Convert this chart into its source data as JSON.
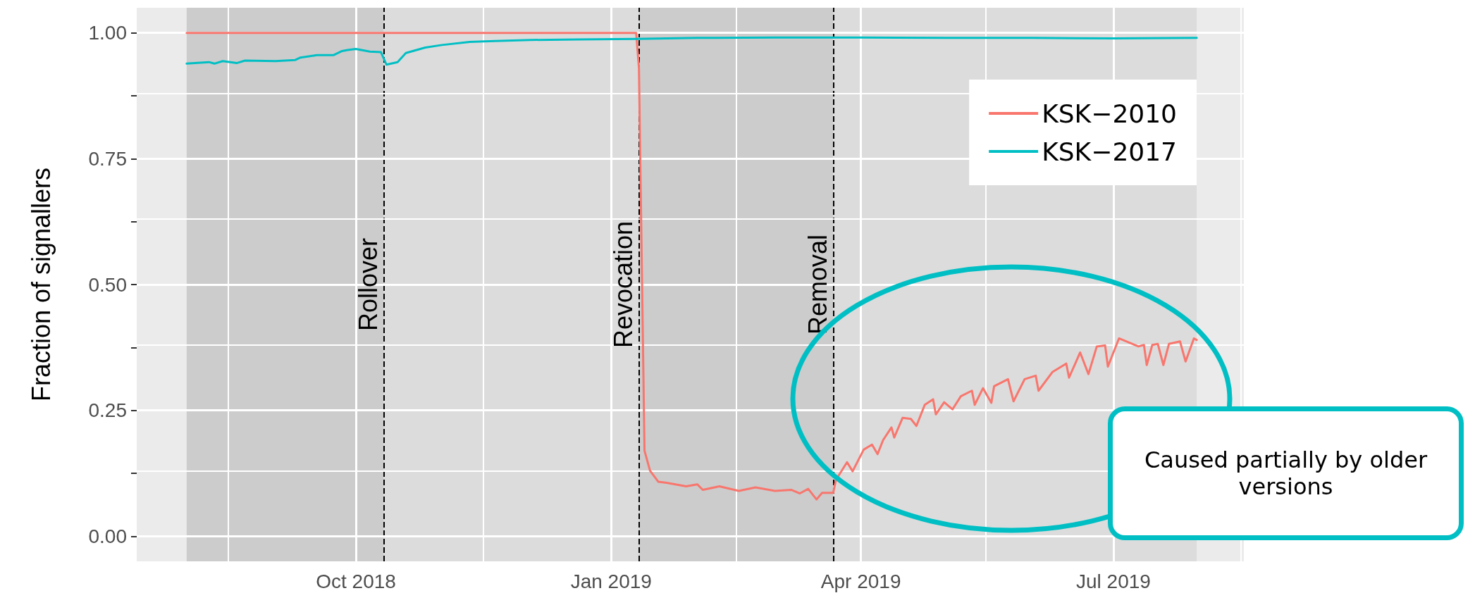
{
  "chart_data": {
    "type": "line",
    "ylabel": "Fraction of signallers",
    "xlim": [
      "2018-07-14",
      "2019-08-17"
    ],
    "xticks": [
      {
        "value": "2018-08-16",
        "label": null
      },
      {
        "value": "2018-10-01",
        "label": "Oct 2018"
      },
      {
        "value": "2018-11-16",
        "label": null
      },
      {
        "value": "2019-01-01",
        "label": "Jan 2019"
      },
      {
        "value": "2019-02-15",
        "label": null
      },
      {
        "value": "2019-04-01",
        "label": "Apr 2019"
      },
      {
        "value": "2019-05-16",
        "label": null
      },
      {
        "value": "2019-07-01",
        "label": "Jul 2019"
      },
      {
        "value": "2019-08-16",
        "label": null
      }
    ],
    "ylim": [
      -0.05,
      1.05
    ],
    "yticks": [
      {
        "value": 0,
        "label": "0.00"
      },
      {
        "value": 0.125,
        "label": null
      },
      {
        "value": 0.25,
        "label": "0.25"
      },
      {
        "value": 0.375,
        "label": null
      },
      {
        "value": 0.5,
        "label": "0.50"
      },
      {
        "value": 0.625,
        "label": null
      },
      {
        "value": 0.75,
        "label": "0.75"
      },
      {
        "value": 0.875,
        "label": null
      },
      {
        "value": 1,
        "label": "1.00"
      }
    ],
    "grid": true,
    "legend": "top right",
    "marker": "none",
    "line_style": "solid",
    "series": [
      {
        "name": "KSK−2010",
        "color": "#f8766d",
        "x": [
          "2018-08-01",
          "2019-01-10",
          "2019-01-11",
          "2019-01-13",
          "2019-01-15",
          "2019-01-18",
          "2019-01-21",
          "2019-01-28",
          "2019-02-01",
          "2019-02-03",
          "2019-02-09",
          "2019-02-16",
          "2019-02-22",
          "2019-03-01",
          "2019-03-07",
          "2019-03-10",
          "2019-03-13",
          "2019-03-16",
          "2019-03-18",
          "2019-03-22",
          "2019-03-23",
          "2019-03-27",
          "2019-03-29",
          "2019-04-02",
          "2019-04-05",
          "2019-04-07",
          "2019-04-09",
          "2019-04-12",
          "2019-04-13",
          "2019-04-16",
          "2019-04-19",
          "2019-04-21",
          "2019-04-24",
          "2019-04-27",
          "2019-04-28",
          "2019-05-01",
          "2019-05-04",
          "2019-05-07",
          "2019-05-11",
          "2019-05-12",
          "2019-05-15",
          "2019-05-18",
          "2019-05-19",
          "2019-05-24",
          "2019-05-26",
          "2019-05-30",
          "2019-06-03",
          "2019-06-04",
          "2019-06-09",
          "2019-06-14",
          "2019-06-15",
          "2019-06-19",
          "2019-06-22",
          "2019-06-25",
          "2019-06-28",
          "2019-06-29",
          "2019-07-03",
          "2019-07-10",
          "2019-07-12",
          "2019-07-13",
          "2019-07-15",
          "2019-07-17",
          "2019-07-19",
          "2019-07-21",
          "2019-07-25",
          "2019-07-27",
          "2019-07-30",
          "2019-07-31"
        ],
        "values": [
          1,
          1,
          0.93,
          0.17,
          0.13,
          0.108,
          0.106,
          0.099,
          0.103,
          0.092,
          0.099,
          0.09,
          0.097,
          0.09,
          0.092,
          0.085,
          0.094,
          0.073,
          0.086,
          0.086,
          0.112,
          0.147,
          0.129,
          0.172,
          0.182,
          0.163,
          0.191,
          0.216,
          0.196,
          0.235,
          0.233,
          0.219,
          0.261,
          0.272,
          0.242,
          0.266,
          0.252,
          0.278,
          0.289,
          0.261,
          0.294,
          0.265,
          0.298,
          0.312,
          0.268,
          0.312,
          0.319,
          0.289,
          0.326,
          0.343,
          0.315,
          0.365,
          0.322,
          0.377,
          0.379,
          0.337,
          0.393,
          0.377,
          0.38,
          0.34,
          0.38,
          0.382,
          0.34,
          0.382,
          0.387,
          0.347,
          0.393,
          0.39
        ]
      },
      {
        "name": "KSK−2017",
        "color": "#00bfc4",
        "x": [
          "2018-08-01",
          "2018-08-09",
          "2018-08-11",
          "2018-08-14",
          "2018-08-19",
          "2018-08-22",
          "2018-09-02",
          "2018-09-09",
          "2018-09-11",
          "2018-09-17",
          "2018-09-23",
          "2018-09-26",
          "2018-09-28",
          "2018-10-01",
          "2018-10-04",
          "2018-10-06",
          "2018-10-10",
          "2018-10-12",
          "2018-10-16",
          "2018-10-19",
          "2018-10-26",
          "2018-11-01",
          "2018-11-11",
          "2018-11-20",
          "2018-12-03",
          "2018-12-20",
          "2019-01-10",
          "2019-02-01",
          "2019-03-01",
          "2019-04-01",
          "2019-05-01",
          "2019-06-01",
          "2019-07-01",
          "2019-07-31"
        ],
        "values": [
          0.939,
          0.942,
          0.939,
          0.944,
          0.94,
          0.945,
          0.944,
          0.946,
          0.951,
          0.956,
          0.956,
          0.964,
          0.966,
          0.968,
          0.965,
          0.963,
          0.962,
          0.937,
          0.942,
          0.96,
          0.971,
          0.976,
          0.982,
          0.984,
          0.986,
          0.987,
          0.988,
          0.99,
          0.991,
          0.991,
          0.99,
          0.99,
          0.989,
          0.99
        ]
      }
    ],
    "ref_lines": [
      {
        "axis": "x",
        "value": "2018-10-11",
        "label": "Rollover",
        "color": "#000000",
        "line_style": "dashed"
      },
      {
        "axis": "x",
        "value": "2019-01-11",
        "label": "Revocation",
        "color": "#000000",
        "line_style": "dashed"
      },
      {
        "axis": "x",
        "value": "2019-03-22",
        "label": "Removal",
        "color": "#000000",
        "line_style": "dashed"
      }
    ],
    "bands": [
      {
        "axis": "x",
        "from": "2018-08-01",
        "to": "2018-10-11",
        "color": "#cccccc"
      },
      {
        "axis": "x",
        "from": "2018-10-11",
        "to": "2019-01-11",
        "color": "#dcdcdc"
      },
      {
        "axis": "x",
        "from": "2019-01-11",
        "to": "2019-03-22",
        "color": "#cccccc"
      },
      {
        "axis": "x",
        "from": "2019-03-22",
        "to": "2019-07-31",
        "color": "#dcdcdc"
      }
    ],
    "annotations": [
      "Caused partially by older versions"
    ]
  }
}
